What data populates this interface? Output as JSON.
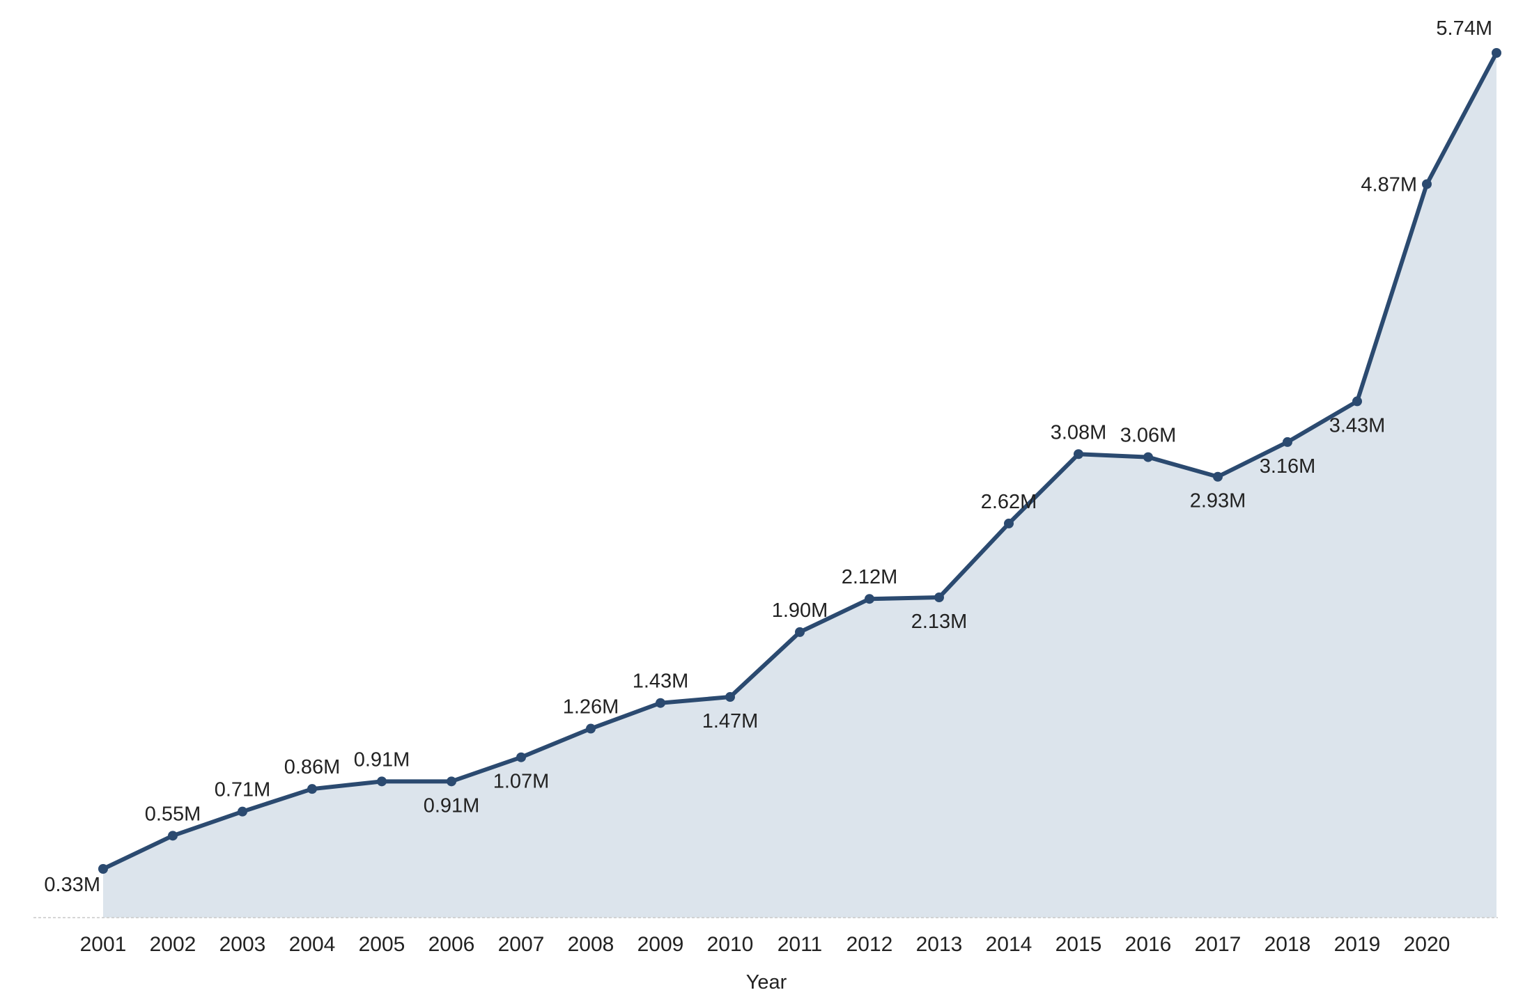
{
  "chart_data": {
    "type": "area",
    "xlabel": "Year",
    "ylabel": "",
    "ylim": [
      0,
      6.0
    ],
    "grid": false,
    "categories": [
      "2001",
      "2002",
      "2003",
      "2004",
      "2005",
      "2006",
      "2007",
      "2008",
      "2009",
      "2010",
      "2011",
      "2012",
      "2013",
      "2014",
      "2015",
      "2016",
      "2017",
      "2018",
      "2019",
      "2020",
      ""
    ],
    "series": [
      {
        "values": [
          0.33,
          0.55,
          0.71,
          0.86,
          0.91,
          0.91,
          1.07,
          1.26,
          1.43,
          1.47,
          1.9,
          2.12,
          2.13,
          2.62,
          3.08,
          3.06,
          2.93,
          3.16,
          3.43,
          4.87,
          5.74
        ],
        "labels": [
          "0.33M",
          "0.55M",
          "0.71M",
          "0.86M",
          "0.91M",
          "0.91M",
          "1.07M",
          "1.26M",
          "1.43M",
          "1.47M",
          "1.90M",
          "2.12M",
          "2.13M",
          "2.62M",
          "3.08M",
          "3.06M",
          "2.93M",
          "3.16M",
          "3.43M",
          "4.87M",
          "5.74M"
        ],
        "label_side": [
          "bl",
          "a",
          "a",
          "a",
          "a",
          "b",
          "b",
          "a",
          "a",
          "b",
          "a",
          "a",
          "b",
          "a",
          "a",
          "a",
          "b",
          "b",
          "b",
          "l",
          "a"
        ]
      }
    ],
    "colors": {
      "line": "#2b4a70",
      "fill": "#dce4ec",
      "baseline": "#c8c8c8"
    }
  }
}
